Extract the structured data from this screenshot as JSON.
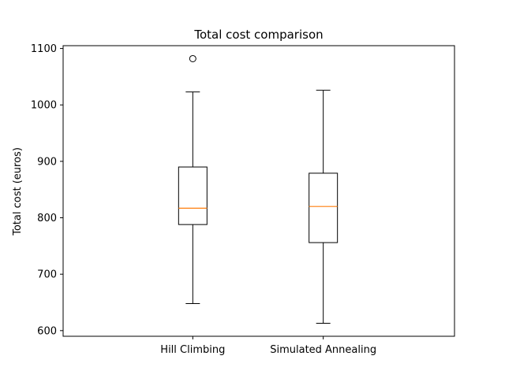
{
  "chart_data": {
    "type": "box",
    "title": "Total cost comparison",
    "xlabel": "",
    "ylabel": "Total cost (euros)",
    "ylim": [
      590,
      1105
    ],
    "yticks": [
      600,
      700,
      800,
      900,
      1000,
      1100
    ],
    "grid": false,
    "categories": [
      "Hill Climbing",
      "Simulated Annealing"
    ],
    "boxes": [
      {
        "whisker_low": 648,
        "q1": 788,
        "median": 817,
        "q3": 890,
        "whisker_high": 1023,
        "outliers": [
          1082
        ]
      },
      {
        "whisker_low": 613,
        "q1": 756,
        "median": 820,
        "q3": 879,
        "whisker_high": 1026,
        "outliers": []
      }
    ],
    "colors": {
      "box": "#000000",
      "median": "#ff7f0e",
      "axes": "#000000"
    }
  }
}
